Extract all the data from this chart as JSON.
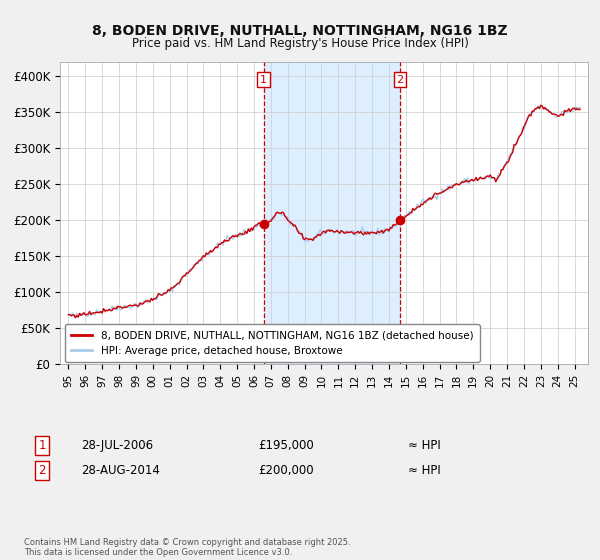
{
  "title": "8, BODEN DRIVE, NUTHALL, NOTTINGHAM, NG16 1BZ",
  "subtitle": "Price paid vs. HM Land Registry's House Price Index (HPI)",
  "line_color": "#cc0000",
  "hpi_color": "#aaccee",
  "span_color": "#ddeeff",
  "plot_bg": "#ffffff",
  "fig_bg": "#f0f0f0",
  "grid_color": "#cccccc",
  "ylim": [
    0,
    420000
  ],
  "yticks": [
    0,
    50000,
    100000,
    150000,
    200000,
    250000,
    300000,
    350000,
    400000
  ],
  "ytick_labels": [
    "£0",
    "£50K",
    "£100K",
    "£150K",
    "£200K",
    "£250K",
    "£300K",
    "£350K",
    "£400K"
  ],
  "sale1_date": 2006.57,
  "sale1_price": 195000,
  "sale1_label": "1",
  "sale2_date": 2014.66,
  "sale2_price": 200000,
  "sale2_label": "2",
  "xmin": 1994.5,
  "xmax": 2025.8,
  "legend_line1": "8, BODEN DRIVE, NUTHALL, NOTTINGHAM, NG16 1BZ (detached house)",
  "legend_line2": "HPI: Average price, detached house, Broxtowe",
  "footnote1_label": "1",
  "footnote1_date": "28-JUL-2006",
  "footnote1_price": "£195,000",
  "footnote1_hpi": "≈ HPI",
  "footnote2_label": "2",
  "footnote2_date": "28-AUG-2014",
  "footnote2_price": "£200,000",
  "footnote2_hpi": "≈ HPI",
  "footer_text": "Contains HM Land Registry data © Crown copyright and database right 2025.\nThis data is licensed under the Open Government Licence v3.0."
}
